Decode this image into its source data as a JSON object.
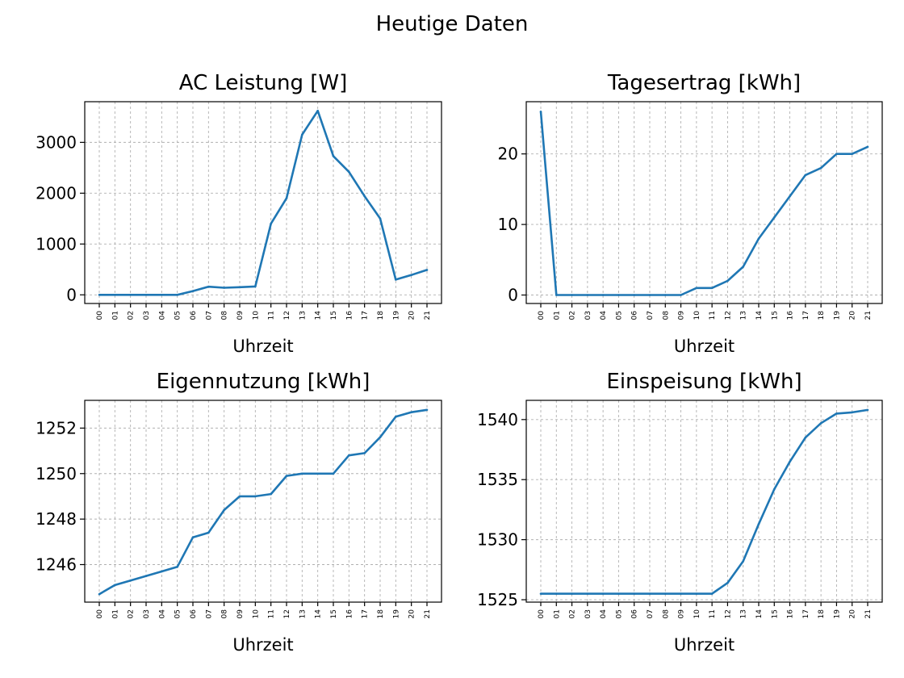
{
  "figure": {
    "title": "Heutige Daten"
  },
  "chart_data": [
    {
      "type": "line",
      "title": "AC Leistung [W]",
      "xlabel": "Uhrzeit",
      "ylabel": "",
      "grid": true,
      "categories": [
        "00",
        "01",
        "02",
        "03",
        "04",
        "05",
        "06",
        "07",
        "08",
        "09",
        "10",
        "11",
        "12",
        "13",
        "14",
        "15",
        "16",
        "17",
        "18",
        "19",
        "20",
        "21"
      ],
      "yticks": [
        0,
        1000,
        2000,
        3000
      ],
      "ylim": [
        -170,
        3800
      ],
      "series": [
        {
          "values": [
            0,
            0,
            0,
            0,
            0,
            0,
            75,
            160,
            140,
            150,
            165,
            1400,
            1900,
            3150,
            3620,
            2730,
            2420,
            1940,
            1500,
            300,
            390,
            490
          ]
        }
      ]
    },
    {
      "type": "line",
      "title": "Tagesertrag [kWh]",
      "xlabel": "Uhrzeit",
      "ylabel": "",
      "grid": true,
      "categories": [
        "00",
        "01",
        "02",
        "03",
        "04",
        "05",
        "06",
        "07",
        "08",
        "09",
        "10",
        "11",
        "12",
        "13",
        "14",
        "15",
        "16",
        "17",
        "18",
        "19",
        "20",
        "21"
      ],
      "yticks": [
        0,
        10,
        20
      ],
      "ylim": [
        -1.2,
        27.4
      ],
      "series": [
        {
          "values": [
            26,
            0,
            0,
            0,
            0,
            0,
            0,
            0,
            0,
            0,
            1,
            1,
            2,
            4,
            8,
            11,
            14,
            17,
            18,
            20,
            20,
            21
          ]
        }
      ]
    },
    {
      "type": "line",
      "title": "Eigennutzung [kWh]",
      "xlabel": "Uhrzeit",
      "ylabel": "",
      "grid": true,
      "categories": [
        "00",
        "01",
        "02",
        "03",
        "04",
        "05",
        "06",
        "07",
        "08",
        "09",
        "10",
        "11",
        "12",
        "13",
        "14",
        "15",
        "16",
        "17",
        "18",
        "19",
        "20",
        "21"
      ],
      "yticks": [
        1246,
        1248,
        1250,
        1252
      ],
      "ylim": [
        1244.35,
        1253.22
      ],
      "series": [
        {
          "values": [
            1244.7,
            1245.1,
            1245.3,
            1245.5,
            1245.7,
            1245.9,
            1247.2,
            1247.4,
            1248.4,
            1249.0,
            1249.0,
            1249.1,
            1249.9,
            1250.0,
            1250.0,
            1250.0,
            1250.8,
            1250.9,
            1251.6,
            1252.5,
            1252.7,
            1252.8
          ]
        }
      ]
    },
    {
      "type": "line",
      "title": "Einspeisung [kWh]",
      "xlabel": "Uhrzeit",
      "ylabel": "",
      "grid": true,
      "categories": [
        "00",
        "01",
        "02",
        "03",
        "04",
        "05",
        "06",
        "07",
        "08",
        "09",
        "10",
        "11",
        "12",
        "13",
        "14",
        "15",
        "16",
        "17",
        "18",
        "19",
        "20",
        "21"
      ],
      "yticks": [
        1525,
        1530,
        1535,
        1540
      ],
      "ylim": [
        1524.8,
        1541.6
      ],
      "series": [
        {
          "values": [
            1525.5,
            1525.5,
            1525.5,
            1525.5,
            1525.5,
            1525.5,
            1525.5,
            1525.5,
            1525.5,
            1525.5,
            1525.5,
            1525.5,
            1526.4,
            1528.2,
            1531.3,
            1534.2,
            1536.5,
            1538.5,
            1539.7,
            1540.5,
            1540.6,
            1540.8
          ]
        }
      ]
    }
  ],
  "colors": {
    "series": "#1f77b4",
    "grid": "#b0b0b0"
  }
}
